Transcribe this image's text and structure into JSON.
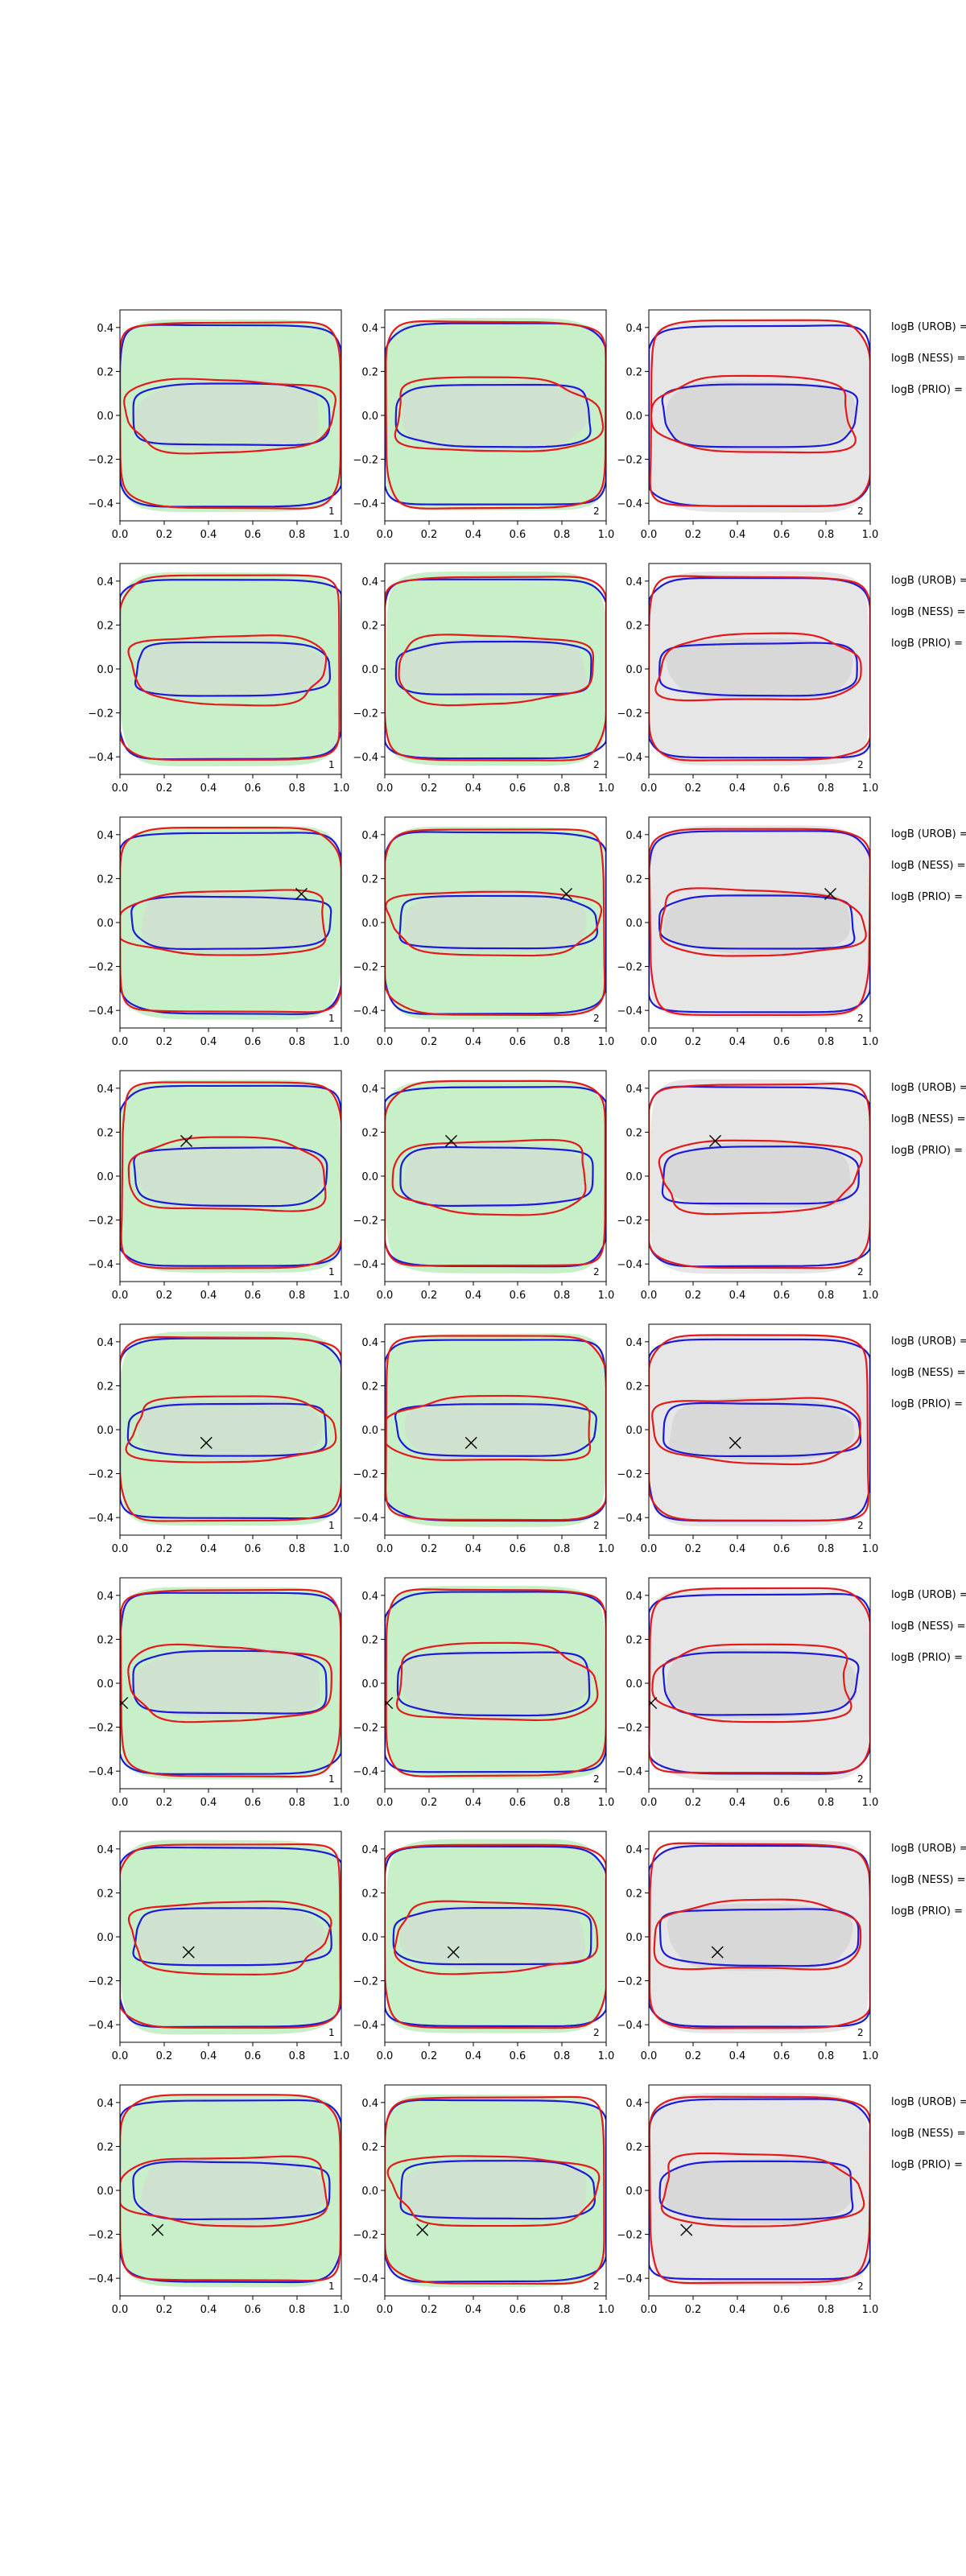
{
  "figure": {
    "row_annotations": [
      "logB (UROB) =",
      "logB (NESS) =",
      "logB (PRIO) ="
    ]
  },
  "chart_data": {
    "type": "contour-grid",
    "rows": 8,
    "cols": 3,
    "xlim": [
      0.0,
      1.0
    ],
    "ylim": [
      -0.48,
      0.48
    ],
    "xticks": [
      0.0,
      0.2,
      0.4,
      0.6,
      0.8,
      1.0
    ],
    "xtick_labels": [
      "0.0",
      "0.2",
      "0.4",
      "0.6",
      "0.8",
      "1.0"
    ],
    "yticks": [
      -0.4,
      -0.2,
      0.0,
      0.2,
      0.4
    ],
    "ytick_labels": [
      "−0.4",
      "−0.2",
      "0.0",
      "0.2",
      "0.4"
    ],
    "panel_labels": [
      "1",
      "2",
      "2"
    ],
    "colors": {
      "outer_red": "#e41a1a",
      "inner_red": "#e41a1a",
      "outer_blue": "#1a1ad8",
      "inner_blue": "#1a1ad8",
      "fill_green": "#c8f0c8",
      "fill_gray_light": "#e6e6e6",
      "fill_gray": "#d6d6d6"
    },
    "panels_fill": [
      "green",
      "green",
      "gray"
    ],
    "markers": [
      null,
      null,
      {
        "x": 0.82,
        "y": 0.13
      },
      {
        "x": 0.3,
        "y": 0.16
      },
      {
        "x": 0.39,
        "y": -0.06
      },
      {
        "x": 0.01,
        "y": -0.09
      },
      {
        "x": 0.31,
        "y": -0.07
      },
      {
        "x": 0.17,
        "y": -0.18
      }
    ],
    "inner_half_height": [
      0.14,
      0.12,
      0.12,
      0.13,
      0.12,
      0.14,
      0.13,
      0.13
    ],
    "outer_half_height": 0.41
  }
}
